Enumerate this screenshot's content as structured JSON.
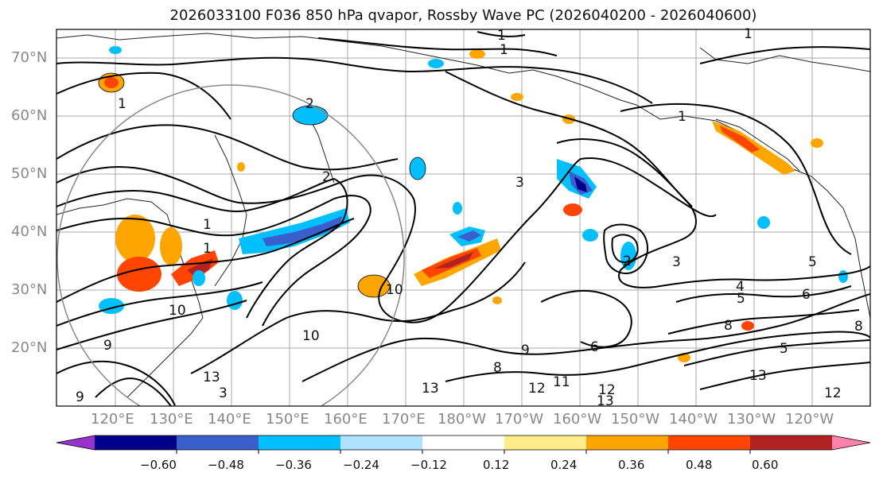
{
  "title": "2026033100 F036 850 hPa qvapor, Rossby Wave PC (2026040200 - 2026040600)",
  "lat_labels": [
    "70°N",
    "60°N",
    "50°N",
    "40°N",
    "30°N",
    "20°N"
  ],
  "lon_labels": [
    "120°E",
    "130°E",
    "140°E",
    "150°E",
    "160°E",
    "170°E",
    "180°W",
    "170°W",
    "160°W",
    "150°W",
    "140°W",
    "130°W",
    "120°W"
  ],
  "colorbar": {
    "colors": [
      "#9932cc",
      "#00008b",
      "#3a5fcd",
      "#00bfff",
      "#b0e2ff",
      "#ffffff",
      "#ffec8b",
      "#ffa500",
      "#ff4500",
      "#b22222",
      "#ff82ab"
    ],
    "tick_labels": [
      "−0.60",
      "−0.48",
      "−0.36",
      "−0.24",
      "−0.12",
      "0.12",
      "0.24",
      "0.36",
      "0.48",
      "0.60"
    ]
  },
  "contour_labels": {
    "values": [
      "1",
      "1",
      "1",
      "1",
      "2",
      "3",
      "1",
      "2",
      "3",
      "1",
      "5",
      "4",
      "6",
      "8",
      "5",
      "10",
      "10",
      "9",
      "8",
      "6",
      "13",
      "13",
      "11",
      "12",
      "13",
      "12",
      "12",
      "5",
      "8",
      "10",
      "9",
      "13",
      "3",
      "1",
      "2",
      "9"
    ]
  }
}
